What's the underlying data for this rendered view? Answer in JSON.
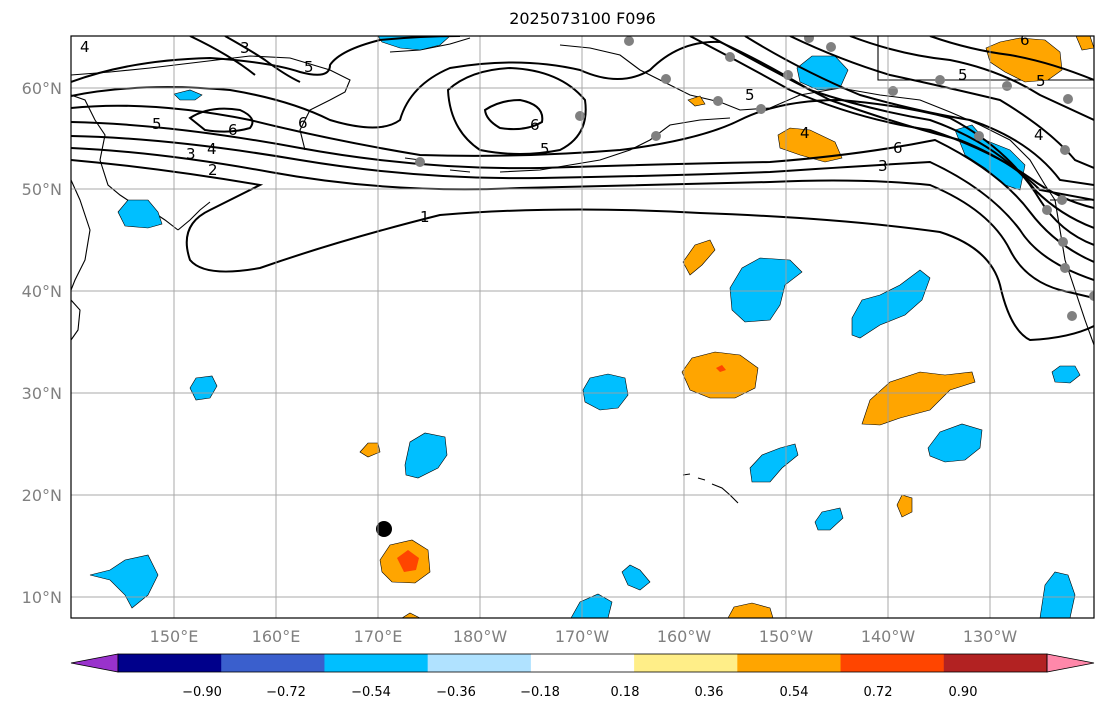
{
  "title": "2025073100 F096",
  "latitude_labels": [
    "60°N",
    "50°N",
    "40°N",
    "30°N",
    "20°N",
    "10°N"
  ],
  "longitude_labels": [
    "150°E",
    "160°E",
    "170°E",
    "180°W",
    "170°W",
    "160°W",
    "150°W",
    "140°W",
    "130°W"
  ],
  "colorbar": {
    "tick_labels": [
      "−0.90",
      "−0.72",
      "−0.54",
      "−0.36",
      "−0.18",
      "0.18",
      "0.36",
      "0.54",
      "0.72",
      "0.90"
    ],
    "colors": [
      "#9932cc",
      "#00008b",
      "#3a5fcd",
      "#00bfff",
      "#b0e2ff",
      "#ffffff",
      "#ffee88",
      "#ffa500",
      "#ff4500",
      "#b22222",
      "#ff88aa"
    ],
    "extend": "both"
  },
  "contour_labels": [
    "1",
    "2",
    "3",
    "4",
    "5",
    "6",
    "5",
    "6",
    "5",
    "6",
    "4",
    "5",
    "6",
    "3",
    "3",
    "4",
    "5",
    "6",
    "4",
    "5"
  ],
  "colors": {
    "positive_fill": "#ffa500",
    "strong_positive_fill": "#ff4500",
    "negative_fill": "#00bfff",
    "contour": "#000000",
    "gridline": "#a0a0a0",
    "station_marker": "#808080",
    "center_marker": "#000000"
  }
}
